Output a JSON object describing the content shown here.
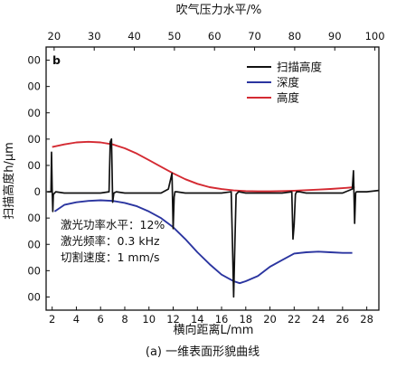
{
  "chart_data": {
    "type": "line",
    "panel_label": "b",
    "caption": "(a) 一维表面形貌曲线",
    "xlabel": "横向距离L/mm",
    "ylabel": "扫描高度h/μm",
    "top_axis_label": "吹气压力水平/%",
    "xlim": [
      1.5,
      29
    ],
    "ylim": [
      -90,
      110
    ],
    "x_ticks": [
      2,
      4,
      6,
      8,
      10,
      12,
      14,
      16,
      18,
      20,
      22,
      24,
      26,
      28
    ],
    "top_ticks": [
      20,
      30,
      40,
      50,
      60,
      70,
      80,
      90,
      100
    ],
    "top_axis_range": [
      18,
      101
    ],
    "y_ticks": [
      -80,
      -60,
      -40,
      -20,
      0,
      20,
      40,
      60,
      80,
      100
    ],
    "y_tick_labels": [
      "00",
      "00",
      "00",
      "00",
      "0",
      "00",
      "00",
      "00",
      "00",
      "00"
    ],
    "legend": {
      "position": "top-right",
      "entries": [
        {
          "label": "扫描高度",
          "color": "#111111"
        },
        {
          "label": "深度",
          "color": "#2b35a0"
        },
        {
          "label": "高度",
          "color": "#d42a32"
        }
      ]
    },
    "annotations": [
      "激光功率水平：12%",
      "激光频率：0.3 kHz",
      "切割速度：1 mm/s"
    ],
    "series": [
      {
        "name": "扫描高度",
        "color": "#111111",
        "x": [
          1.6,
          1.9,
          1.95,
          2.0,
          2.05,
          2.1,
          2.3,
          3.0,
          4.0,
          5.0,
          6.0,
          6.7,
          6.8,
          6.9,
          7.0,
          7.1,
          7.3,
          8.0,
          9.0,
          10.0,
          11.0,
          11.6,
          11.9,
          12.0,
          12.08,
          12.15,
          12.3,
          13.0,
          14.0,
          15.0,
          16.0,
          16.8,
          16.9,
          17.0,
          17.1,
          17.2,
          17.4,
          18.0,
          19.0,
          20.0,
          21.0,
          21.8,
          21.9,
          22.0,
          22.1,
          22.2,
          22.4,
          23.0,
          24.0,
          25.0,
          26.0,
          26.8,
          26.9,
          27.0,
          27.08,
          27.15,
          27.4,
          28.0,
          29.0
        ],
        "y": [
          0,
          0,
          30,
          2,
          -15,
          -2,
          0,
          -1,
          -1,
          -1,
          -1,
          0,
          38,
          40,
          -8,
          -1,
          0,
          -1,
          -1,
          -1,
          -1,
          2,
          14,
          -28,
          -4,
          0,
          0,
          -1,
          -1,
          -1,
          -1,
          0,
          -40,
          -80,
          -38,
          -2,
          0,
          -1,
          -1,
          -1,
          -1,
          0,
          -36,
          -25,
          -2,
          0,
          0,
          -1,
          -1,
          -1,
          -1,
          2,
          16,
          -24,
          -1,
          0,
          0,
          0,
          1
        ]
      },
      {
        "name": "深度",
        "color": "#2b35a0",
        "x": [
          2.2,
          3.0,
          4.0,
          5.0,
          6.0,
          7.0,
          8.0,
          9.0,
          10.0,
          11.0,
          12.0,
          13.0,
          14.0,
          15.0,
          16.0,
          17.0,
          17.5,
          18.0,
          19.0,
          20.0,
          21.0,
          22.0,
          23.0,
          24.0,
          25.0,
          26.0,
          26.8
        ],
        "y": [
          -15,
          -10,
          -8,
          -7,
          -6.5,
          -7,
          -8.5,
          -11,
          -15,
          -20,
          -27,
          -36,
          -46,
          -55,
          -63,
          -68,
          -69.5,
          -68,
          -64,
          -57,
          -52,
          -47,
          -46,
          -45.5,
          -46,
          -46.5,
          -46.5
        ]
      },
      {
        "name": "高度",
        "color": "#d42a32",
        "x": [
          2.0,
          3.0,
          4.0,
          5.0,
          6.0,
          7.0,
          8.0,
          9.0,
          10.0,
          11.0,
          12.0,
          13.0,
          14.0,
          15.0,
          16.0,
          17.0,
          18.0,
          19.0,
          20.0,
          21.0,
          22.0,
          23.0,
          24.0,
          25.0,
          26.0,
          27.0
        ],
        "y": [
          34,
          36,
          37.5,
          38,
          37.5,
          36,
          33,
          29,
          24,
          19,
          14,
          9.5,
          6,
          3.5,
          2,
          1,
          0.5,
          0.3,
          0.3,
          0.5,
          0.8,
          1.2,
          1.6,
          2.1,
          2.7,
          3.5
        ]
      }
    ]
  }
}
